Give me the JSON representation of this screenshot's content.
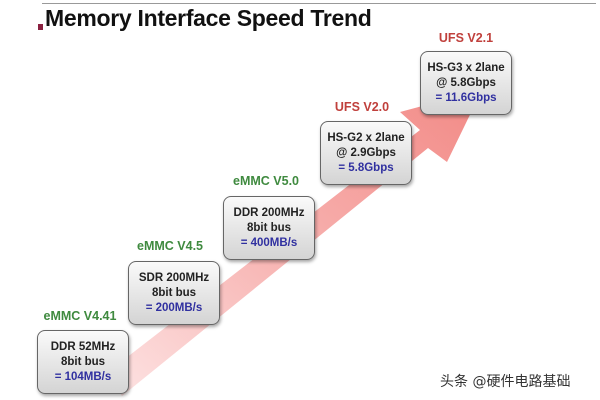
{
  "title": "Memory Interface Speed Trend",
  "colors": {
    "arrow": "#f28a86",
    "emmc_label": "#3f8a3f",
    "ufs_label": "#c0403c",
    "value": "#3030a0"
  },
  "steps": [
    {
      "label": "eMMC V4.41",
      "line1": "DDR 52MHz",
      "line2": "8bit bus",
      "value": "= 104MB/s"
    },
    {
      "label": "eMMC V4.5",
      "line1": "SDR 200MHz",
      "line2": "8bit bus",
      "value": "= 200MB/s"
    },
    {
      "label": "eMMC V5.0",
      "line1": "DDR 200MHz",
      "line2": "8bit bus",
      "value": "= 400MB/s"
    },
    {
      "label": "UFS V2.0",
      "line1": "HS-G2 x 2lane",
      "line2": "@ 2.9Gbps",
      "value": "= 5.8Gbps"
    },
    {
      "label": "UFS V2.1",
      "line1": "HS-G3 x 2lane",
      "line2": "@ 5.8Gbps",
      "value": "= 11.6Gbps"
    }
  ],
  "watermark": "头条 @硬件电路基础"
}
